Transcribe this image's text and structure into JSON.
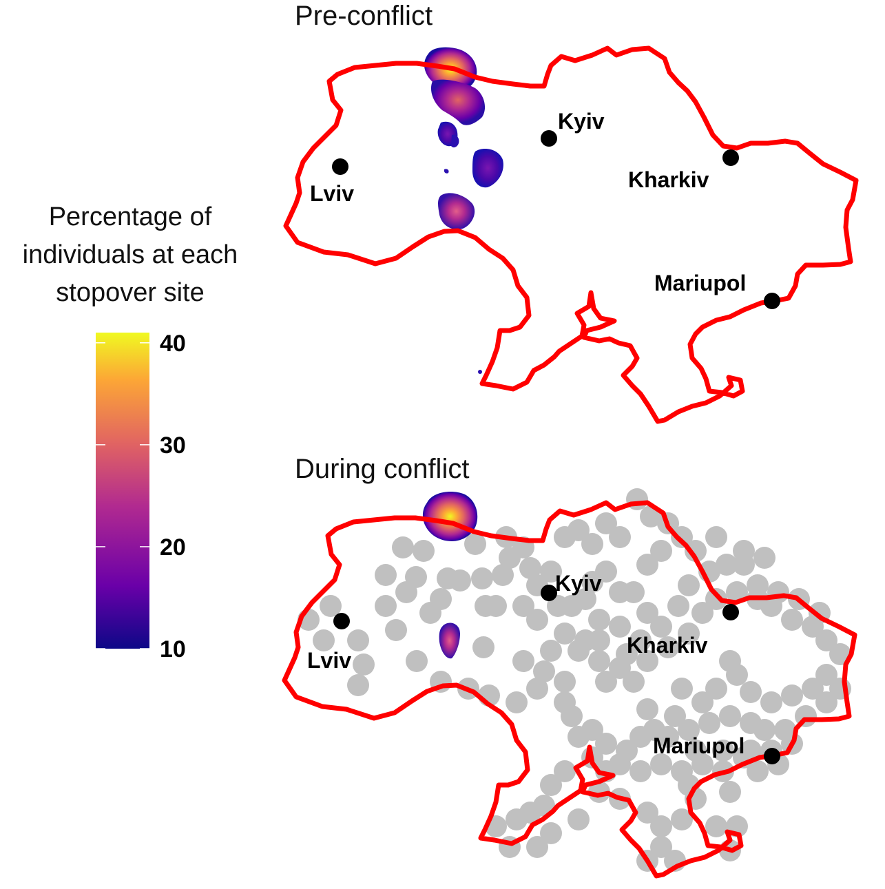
{
  "panels": [
    {
      "title": "Pre-conflict"
    },
    {
      "title": "During conflict"
    }
  ],
  "cities": [
    "Kyiv",
    "Lviv",
    "Kharkiv",
    "Mariupol"
  ],
  "legend": {
    "title_lines": [
      "Percentage of",
      "individuals at each",
      "stopover site"
    ],
    "ticks": [
      "40",
      "30",
      "20",
      "10"
    ],
    "tick_values": [
      40,
      30,
      20,
      10
    ],
    "range": [
      10,
      41
    ],
    "colorscale": "plasma",
    "colors": [
      "#0d0887",
      "#6a00a8",
      "#b12a90",
      "#e16462",
      "#fca636",
      "#f0f921"
    ]
  },
  "colors": {
    "border": "#ff0000",
    "conflict_events": "#c0c0c0",
    "city_marker": "#000000"
  }
}
